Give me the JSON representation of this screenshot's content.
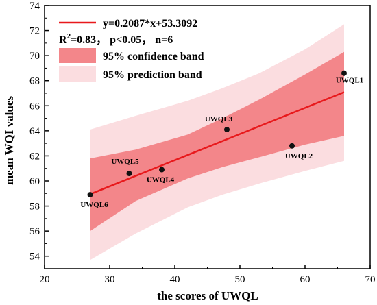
{
  "chart_data": {
    "type": "scatter",
    "xlabel": "the scores of UWQL",
    "ylabel": "mean WQI values",
    "xlim": [
      20,
      70
    ],
    "ylim": [
      53,
      74
    ],
    "xticks": [
      20,
      30,
      40,
      50,
      60,
      70
    ],
    "yticks": [
      54,
      56,
      58,
      60,
      62,
      64,
      66,
      68,
      70,
      72,
      74
    ],
    "points": [
      {
        "label": "UWQL1",
        "x": 66,
        "y": 68.6
      },
      {
        "label": "UWQL2",
        "x": 58,
        "y": 62.8
      },
      {
        "label": "UWQL3",
        "x": 48,
        "y": 64.1
      },
      {
        "label": "UWQL4",
        "x": 38,
        "y": 60.9
      },
      {
        "label": "UWQL5",
        "x": 33,
        "y": 60.6
      },
      {
        "label": "UWQL6",
        "x": 27,
        "y": 58.9
      }
    ],
    "fit": {
      "slope": 0.2087,
      "intercept": 53.3092,
      "x_range": [
        27,
        66
      ]
    },
    "confidence_band": {
      "x": [
        27,
        34,
        42,
        47.3,
        53,
        60,
        66
      ],
      "lower": [
        56.0,
        58.4,
        60.2,
        61.1,
        61.9,
        62.9,
        63.6
      ],
      "upper": [
        61.8,
        62.5,
        63.7,
        65.0,
        66.5,
        68.5,
        70.3
      ]
    },
    "prediction_band": {
      "x": [
        27,
        34,
        42,
        47.3,
        53,
        60,
        66
      ],
      "lower": [
        53.7,
        55.8,
        57.9,
        58.9,
        59.8,
        60.8,
        61.6
      ],
      "upper": [
        64.1,
        65.2,
        66.4,
        67.4,
        68.6,
        70.5,
        72.5
      ]
    },
    "legend": {
      "position": "top-left",
      "fit_label": "y=0.2087*x+53.3092",
      "stats_r_prefix": "R",
      "stats_r_superscript": "2",
      "stats_rest": "=0.83， p<0.05， n=6",
      "confidence_label": "95% confidence band",
      "prediction_label": "95% prediction band"
    },
    "colors": {
      "fit_line": "#e8191c",
      "confidence_band": "#f3868a",
      "prediction_band": "#fbdde0",
      "points": "#111111"
    }
  }
}
